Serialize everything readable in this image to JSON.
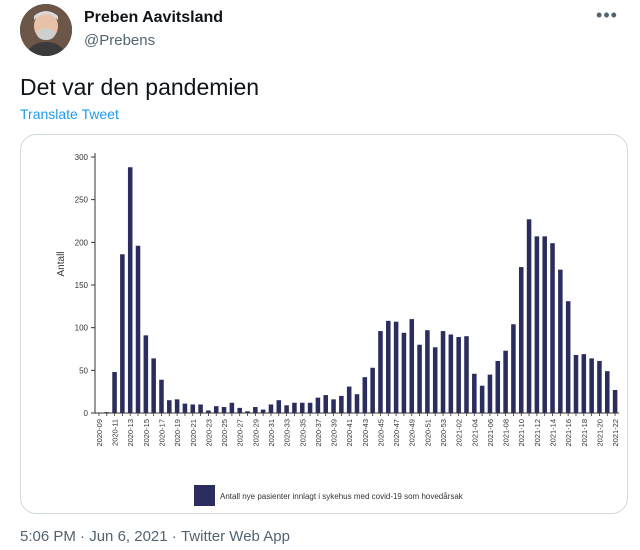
{
  "author": {
    "name": "Preben Aavitsland",
    "handle": "@Prebens"
  },
  "tweet": {
    "text": "Det var den pandemien",
    "translate_label": "Translate Tweet",
    "more_icon": "more-horizontal-icon"
  },
  "meta": {
    "time": "5:06 PM",
    "separator": " · ",
    "date": "Jun 6, 2021",
    "source": "Twitter Web App"
  },
  "chart_data": {
    "type": "bar",
    "ylabel": "Antall",
    "xlabel": "",
    "ylim": [
      0,
      300
    ],
    "yticks": [
      0,
      50,
      100,
      150,
      200,
      250,
      300
    ],
    "grid": false,
    "legend_position": "bottom",
    "bar_color": "#2b2d5e",
    "series": [
      {
        "name": "Antall nye pasienter innlagt i sykehus med covid-19 som hovedårsak",
        "values": [
          0,
          1,
          48,
          186,
          288,
          196,
          91,
          64,
          39,
          15,
          16,
          11,
          10,
          10,
          3,
          8,
          7,
          12,
          6,
          2,
          7,
          4,
          10,
          15,
          9,
          12,
          12,
          12,
          18,
          21,
          16,
          20,
          31,
          22,
          42,
          53,
          96,
          108,
          107,
          94,
          110,
          80,
          97,
          77,
          96,
          92,
          89,
          90,
          46,
          32,
          45,
          61,
          73,
          104,
          171,
          227,
          207,
          207,
          199,
          168,
          131,
          68,
          69,
          64,
          61,
          49,
          27
        ]
      }
    ],
    "categories": [
      "2020-09",
      "2020-10",
      "2020-11",
      "2020-12",
      "2020-13",
      "2020-14",
      "2020-15",
      "2020-16",
      "2020-17",
      "2020-18",
      "2020-19",
      "2020-20",
      "2020-21",
      "2020-22",
      "2020-23",
      "2020-24",
      "2020-25",
      "2020-26",
      "2020-27",
      "2020-28",
      "2020-29",
      "2020-30",
      "2020-31",
      "2020-32",
      "2020-33",
      "2020-34",
      "2020-35",
      "2020-36",
      "2020-37",
      "2020-38",
      "2020-39",
      "2020-40",
      "2020-41",
      "2020-42",
      "2020-43",
      "2020-44",
      "2020-45",
      "2020-46",
      "2020-47",
      "2020-48",
      "2020-49",
      "2020-50",
      "2020-51",
      "2020-52",
      "2020-53",
      "2021-01",
      "2021-02",
      "2021-03",
      "2021-04",
      "2021-05",
      "2021-06",
      "2021-07",
      "2021-08",
      "2021-09",
      "2021-10",
      "2021-11",
      "2021-12",
      "2021-13",
      "2021-14",
      "2021-15",
      "2021-16",
      "2021-17",
      "2021-18",
      "2021-19",
      "2021-20",
      "2021-21",
      "2021-22"
    ],
    "shown_tick_labels": [
      "2020-09",
      "2020-11",
      "2020-13",
      "2020-15",
      "2020-17",
      "2020-19",
      "2020-21",
      "2020-23",
      "2020-25",
      "2020-27",
      "2020-29",
      "2020-31",
      "2020-33",
      "2020-35",
      "2020-37",
      "2020-39",
      "2020-41",
      "2020-43",
      "2020-45",
      "2020-47",
      "2020-49",
      "2020-51",
      "2020-53",
      "2021-02",
      "2021-04",
      "2021-06",
      "2021-08",
      "2021-10",
      "2021-12",
      "2021-14",
      "2021-16",
      "2021-18",
      "2021-20",
      "2021-22"
    ]
  }
}
